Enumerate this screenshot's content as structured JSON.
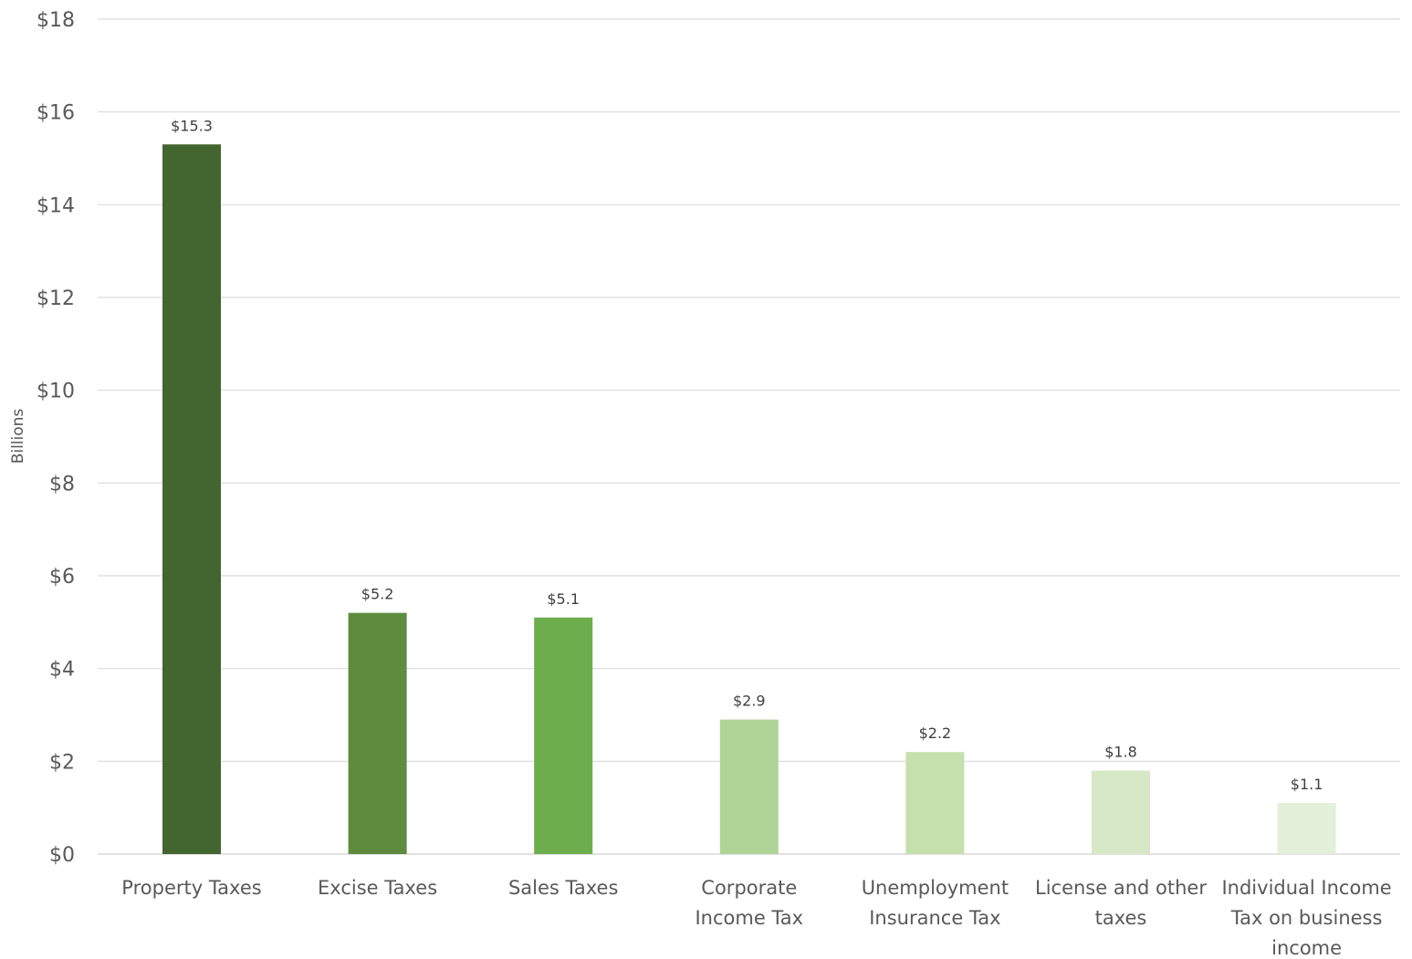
{
  "chart_data": {
    "type": "bar",
    "title": "",
    "xlabel": "",
    "ylabel": "Billions",
    "ylim": [
      0,
      18
    ],
    "ytick_step": 2,
    "ytick_prefix": "$",
    "grid": true,
    "legend": "none",
    "categories": [
      "Property Taxes",
      "Excise Taxes",
      "Sales Taxes",
      "Corporate Income Tax",
      "Unemployment Insurance Tax",
      "License and other taxes",
      "Individual Income Tax on business income"
    ],
    "category_lines": [
      [
        "Property Taxes"
      ],
      [
        "Excise Taxes"
      ],
      [
        "Sales Taxes"
      ],
      [
        "Corporate",
        "Income Tax"
      ],
      [
        "Unemployment",
        "Insurance Tax"
      ],
      [
        "License and other",
        "taxes"
      ],
      [
        "Individual Income",
        "Tax on business",
        "income"
      ]
    ],
    "values": [
      15.3,
      5.2,
      5.1,
      2.9,
      2.2,
      1.8,
      1.1
    ],
    "data_labels": [
      "$15.3",
      "$5.2",
      "$5.1",
      "$2.9",
      "$2.2",
      "$1.8",
      "$1.1"
    ],
    "colors": [
      "#43652f",
      "#5e8b3e",
      "#6dad4d",
      "#b0d497",
      "#c5e0ac",
      "#d7e8c7",
      "#e3efd9"
    ],
    "gridline_color": "#d9d9d9"
  }
}
